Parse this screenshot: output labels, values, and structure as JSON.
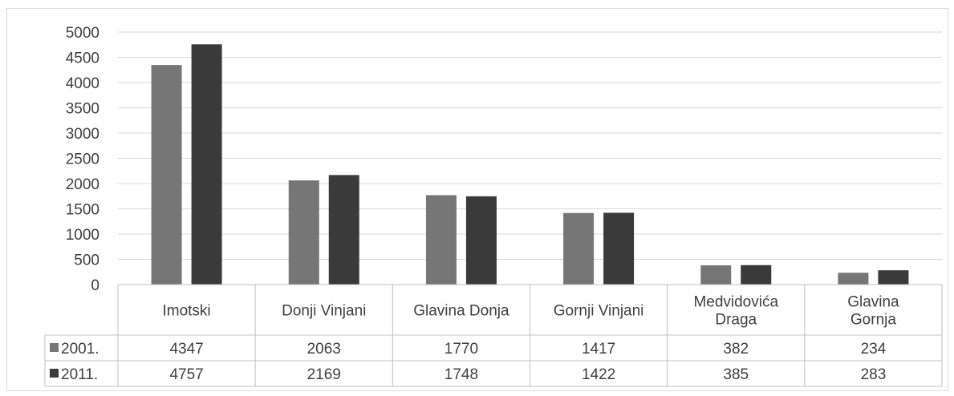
{
  "chart_data": {
    "type": "bar",
    "categories": [
      [
        "Imotski"
      ],
      [
        "Donji Vinjani"
      ],
      [
        "Glavina Donja"
      ],
      [
        "Gornji Vinjani"
      ],
      [
        "Medvidovića",
        "Draga"
      ],
      [
        "Glavina",
        "Gornja"
      ]
    ],
    "series": [
      {
        "name": "2001.",
        "values": [
          4347,
          2063,
          1770,
          1417,
          382,
          234
        ],
        "color": "#767676"
      },
      {
        "name": "2011.",
        "values": [
          4757,
          2169,
          1748,
          1422,
          385,
          283
        ],
        "color": "#3a3a3a"
      }
    ],
    "yticks": [
      "0",
      "500",
      "1000",
      "1500",
      "2000",
      "2500",
      "3000",
      "3500",
      "4000",
      "4500",
      "5000"
    ],
    "ylim": [
      0,
      5000
    ],
    "grid": true,
    "legend": "data-table-left"
  }
}
